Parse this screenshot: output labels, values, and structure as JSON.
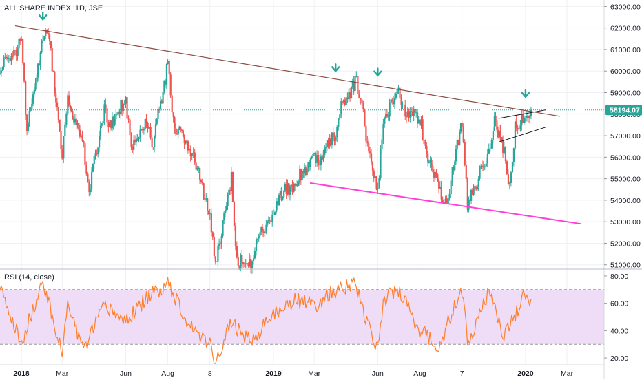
{
  "title": "ALL SHARE INDEX, 1D, JSE",
  "colors": {
    "up": "#26a69a",
    "down": "#ef5350",
    "rsi_line": "#ff7f2a",
    "rsi_band": "#efdcf6",
    "trend_top": "#8b4a43",
    "support": "#ff40d8",
    "arrow": "#26a69a",
    "price_line": "#26a69a",
    "grid": "#eef0f3",
    "axis_text": "#131722"
  },
  "last_price": {
    "label": "58194.07",
    "value": 58194.07
  },
  "rsi_title": "RSI (14, close)",
  "chart_data": [
    {
      "type": "candlestick",
      "title": "ALL SHARE INDEX, 1D, JSE",
      "ylim": [
        50800,
        63300
      ],
      "yticks": [
        51000,
        52000,
        53000,
        54000,
        55000,
        56000,
        57000,
        58000,
        59000,
        60000,
        61000,
        62000,
        63000
      ],
      "ytick_labels": [
        "51000.00",
        "52000.00",
        "53000.00",
        "54000.00",
        "55000.00",
        "56000.00",
        "57000.00",
        "58000.00",
        "59000.00",
        "60000.00",
        "61000.00",
        "62000.00",
        "63000.00"
      ],
      "x_labels": [
        {
          "label": "2018",
          "major": true
        },
        {
          "label": "Mar",
          "major": false
        },
        {
          "label": "Jun",
          "major": false
        },
        {
          "label": "Aug",
          "major": false
        },
        {
          "label": "8",
          "major": false
        },
        {
          "label": "2019",
          "major": true
        },
        {
          "label": "Mar",
          "major": false
        },
        {
          "label": "Jun",
          "major": false
        },
        {
          "label": "Aug",
          "major": false
        },
        {
          "label": "7",
          "major": false
        },
        {
          "label": "2020",
          "major": true
        },
        {
          "label": "Mar",
          "major": false
        }
      ],
      "x_dates": [
        "2018-01",
        "2018-03",
        "2018-06",
        "2018-08",
        "2018-10",
        "2019-01",
        "2019-03",
        "2019-06",
        "2019-08",
        "2019-10",
        "2020-01",
        "2020-03"
      ],
      "price_path": [
        [
          "2017-12",
          60200
        ],
        [
          "2018-01",
          61300
        ],
        [
          "2018-01",
          57300
        ],
        [
          "2018-02",
          61600
        ],
        [
          "2018-02",
          61900
        ],
        [
          "2018-03",
          56100
        ],
        [
          "2018-03",
          58700
        ],
        [
          "2018-04",
          56400
        ],
        [
          "2018-04",
          54400
        ],
        [
          "2018-05",
          58300
        ],
        [
          "2018-05",
          57400
        ],
        [
          "2018-06",
          58700
        ],
        [
          "2018-06",
          56400
        ],
        [
          "2018-07",
          57800
        ],
        [
          "2018-07",
          56500
        ],
        [
          "2018-08",
          60300
        ],
        [
          "2018-08",
          57600
        ],
        [
          "2018-09",
          56300
        ],
        [
          "2018-09",
          55800
        ],
        [
          "2018-10",
          53200
        ],
        [
          "2018-10",
          51100
        ],
        [
          "2018-11",
          55000
        ],
        [
          "2018-11",
          51200
        ],
        [
          "2018-12",
          50900
        ],
        [
          "2018-12",
          52200
        ],
        [
          "2019-01",
          53400
        ],
        [
          "2019-01",
          54200
        ],
        [
          "2019-02",
          54800
        ],
        [
          "2019-03",
          56000
        ],
        [
          "2019-03",
          55900
        ],
        [
          "2019-04",
          57200
        ],
        [
          "2019-04",
          58300
        ],
        [
          "2019-05",
          59500
        ],
        [
          "2019-05",
          58500
        ],
        [
          "2019-05",
          56300
        ],
        [
          "2019-06",
          54600
        ],
        [
          "2019-06",
          57600
        ],
        [
          "2019-07",
          59300
        ],
        [
          "2019-07",
          58100
        ],
        [
          "2019-08",
          57800
        ],
        [
          "2019-08",
          56300
        ],
        [
          "2019-09",
          54300
        ],
        [
          "2019-09",
          53600
        ],
        [
          "2019-09",
          55400
        ],
        [
          "2019-10",
          57600
        ],
        [
          "2019-10",
          53800
        ],
        [
          "2019-11",
          55700
        ],
        [
          "2019-11",
          56200
        ],
        [
          "2019-11",
          57700
        ],
        [
          "2019-12",
          56300
        ],
        [
          "2019-12",
          54600
        ],
        [
          "2019-12",
          57400
        ],
        [
          "2020-01",
          57900
        ],
        [
          "2020-01",
          58194.07
        ]
      ],
      "annotations": [
        {
          "type": "trendline",
          "name": "resistance",
          "from": [
            "2017-12",
            62100
          ],
          "to": [
            "2020-01",
            57900
          ]
        },
        {
          "type": "trendline",
          "name": "support",
          "from": [
            "2019-02",
            54800
          ],
          "to": [
            "2020-02",
            52900
          ]
        },
        {
          "type": "channel_upper",
          "from": [
            "2019-11",
            57800
          ],
          "to": [
            "2020-01",
            58200
          ]
        },
        {
          "type": "channel_lower",
          "from": [
            "2019-11",
            56700
          ],
          "to": [
            "2020-01",
            57400
          ]
        },
        {
          "type": "arrow_down",
          "at": [
            "2018-02",
            62300
          ]
        },
        {
          "type": "arrow_down",
          "at": [
            "2019-04",
            59900
          ]
        },
        {
          "type": "arrow_down",
          "at": [
            "2019-06",
            59700
          ]
        },
        {
          "type": "arrow_down",
          "at": [
            "2020-01",
            58700
          ]
        }
      ]
    },
    {
      "type": "line",
      "title": "RSI (14, close)",
      "ylim": [
        15,
        85
      ],
      "yticks": [
        20,
        40,
        60,
        80
      ],
      "ytick_labels": [
        "20.00",
        "40.00",
        "60.00",
        "80.00"
      ],
      "band": [
        30,
        70
      ],
      "rsi_path": [
        [
          "2017-12",
          70
        ],
        [
          "2018-01",
          30
        ],
        [
          "2018-02",
          77
        ],
        [
          "2018-03",
          22
        ],
        [
          "2018-03",
          60
        ],
        [
          "2018-04",
          25
        ],
        [
          "2018-05",
          58
        ],
        [
          "2018-06",
          47
        ],
        [
          "2018-07",
          63
        ],
        [
          "2018-08",
          75
        ],
        [
          "2018-09",
          45
        ],
        [
          "2018-10",
          30
        ],
        [
          "2018-10",
          18
        ],
        [
          "2018-11",
          45
        ],
        [
          "2018-12",
          32
        ],
        [
          "2019-01",
          52
        ],
        [
          "2019-02",
          63
        ],
        [
          "2019-03",
          58
        ],
        [
          "2019-04",
          70
        ],
        [
          "2019-05",
          75
        ],
        [
          "2019-05",
          55
        ],
        [
          "2019-06",
          27
        ],
        [
          "2019-06",
          62
        ],
        [
          "2019-07",
          70
        ],
        [
          "2019-08",
          40
        ],
        [
          "2019-09",
          28
        ],
        [
          "2019-09",
          45
        ],
        [
          "2019-10",
          68
        ],
        [
          "2019-10",
          32
        ],
        [
          "2019-11",
          58
        ],
        [
          "2019-11",
          70
        ],
        [
          "2019-12",
          35
        ],
        [
          "2020-01",
          68
        ],
        [
          "2020-01",
          63
        ]
      ]
    }
  ]
}
